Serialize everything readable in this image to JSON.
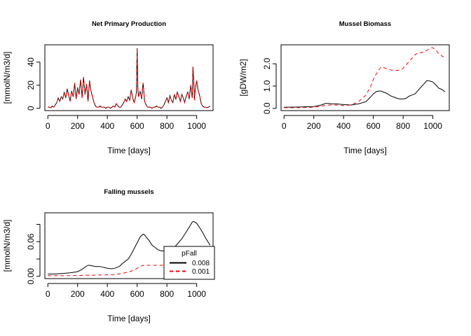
{
  "chart_data": [
    {
      "id": "npp",
      "type": "line",
      "title": "Net Primary Production",
      "xlabel": "Time [days]",
      "ylabel": "[mmolN/m3/d]",
      "xlim": [
        -20,
        1110
      ],
      "ylim": [
        -2,
        55
      ],
      "xticks": [
        0,
        200,
        400,
        600,
        800,
        1000
      ],
      "yticks": [
        0,
        20,
        40
      ],
      "ytick_labels": [
        "0",
        "20",
        "40"
      ],
      "series": [
        {
          "color": "#000000",
          "dash": "solid",
          "x": [
            0,
            10,
            20,
            30,
            40,
            50,
            60,
            70,
            80,
            90,
            100,
            110,
            120,
            130,
            140,
            150,
            160,
            170,
            180,
            190,
            200,
            210,
            220,
            230,
            240,
            250,
            260,
            270,
            280,
            290,
            300,
            310,
            320,
            330,
            340,
            350,
            360,
            370,
            380,
            390,
            400,
            410,
            420,
            430,
            440,
            450,
            460,
            470,
            480,
            490,
            500,
            510,
            520,
            530,
            540,
            550,
            560,
            570,
            580,
            590,
            595,
            600,
            605,
            610,
            620,
            630,
            640,
            650,
            660,
            670,
            680,
            690,
            700,
            710,
            720,
            730,
            740,
            750,
            760,
            770,
            780,
            790,
            800,
            810,
            820,
            830,
            840,
            850,
            860,
            870,
            880,
            890,
            900,
            910,
            920,
            930,
            940,
            950,
            960,
            970,
            975,
            980,
            985,
            990,
            1000,
            1010,
            1020,
            1030,
            1040,
            1050,
            1060,
            1070,
            1080,
            1090
          ],
          "y": [
            1,
            1,
            0.5,
            2,
            1,
            3,
            5,
            9,
            6,
            10,
            8,
            14,
            9,
            17,
            11,
            6,
            15,
            10,
            22,
            8,
            18,
            12,
            25,
            9,
            27,
            12,
            21,
            6,
            24,
            15,
            10,
            5,
            2,
            1,
            1,
            2,
            1,
            1,
            1,
            0,
            1,
            1,
            0,
            1,
            2,
            1,
            4,
            2,
            1,
            1,
            3,
            5,
            8,
            6,
            10,
            7,
            16,
            9,
            5,
            10,
            14,
            52,
            16,
            10,
            15,
            8,
            22,
            6,
            3,
            1,
            1,
            1,
            0,
            1,
            1,
            2,
            1,
            1,
            0,
            1,
            3,
            6,
            9,
            5,
            11,
            7,
            5,
            12,
            8,
            14,
            10,
            6,
            12,
            9,
            5,
            11,
            14,
            8,
            20,
            9,
            36,
            25,
            7,
            16,
            24,
            15,
            11,
            4,
            2,
            1,
            1,
            0.5,
            1,
            2
          ]
        },
        {
          "color": "#ff0000",
          "dash": "5,4",
          "x": [
            0,
            10,
            20,
            30,
            40,
            50,
            60,
            70,
            80,
            90,
            100,
            110,
            120,
            130,
            140,
            150,
            160,
            170,
            180,
            190,
            200,
            210,
            220,
            230,
            240,
            250,
            260,
            270,
            280,
            290,
            300,
            310,
            320,
            330,
            340,
            350,
            360,
            370,
            380,
            390,
            400,
            410,
            420,
            430,
            440,
            450,
            460,
            470,
            480,
            490,
            500,
            510,
            520,
            530,
            540,
            550,
            560,
            570,
            580,
            590,
            595,
            600,
            605,
            610,
            620,
            630,
            640,
            650,
            660,
            670,
            680,
            690,
            700,
            710,
            720,
            730,
            740,
            750,
            760,
            770,
            780,
            790,
            800,
            810,
            820,
            830,
            840,
            850,
            860,
            870,
            880,
            890,
            900,
            910,
            920,
            930,
            940,
            950,
            960,
            970,
            975,
            980,
            985,
            990,
            1000,
            1010,
            1020,
            1030,
            1040,
            1050,
            1060,
            1070,
            1080,
            1090
          ],
          "y": [
            1,
            1,
            0.5,
            2,
            1,
            3,
            5,
            9,
            6,
            10,
            8,
            14,
            9,
            17,
            11,
            6,
            15,
            10,
            22,
            8,
            18,
            12,
            25,
            9,
            27,
            12,
            21,
            6,
            24,
            15,
            10,
            5,
            2,
            1,
            1,
            2,
            1,
            1,
            1,
            0,
            1,
            1,
            0,
            1,
            2,
            1,
            4,
            2,
            1,
            1,
            3,
            5,
            8,
            6,
            10,
            7,
            16,
            9,
            5,
            10,
            14,
            52,
            16,
            10,
            15,
            8,
            22,
            6,
            3,
            1,
            1,
            1,
            0,
            1,
            1,
            2,
            1,
            1,
            0,
            1,
            3,
            6,
            9,
            5,
            11,
            7,
            5,
            12,
            8,
            14,
            10,
            6,
            12,
            9,
            5,
            11,
            14,
            8,
            20,
            9,
            36,
            25,
            7,
            16,
            24,
            15,
            11,
            4,
            2,
            1,
            1,
            0.5,
            1,
            2
          ]
        }
      ]
    },
    {
      "id": "biomass",
      "type": "line",
      "title": "Mussel Biomass",
      "xlabel": "Time [days]",
      "ylabel": "[gDW/m2]",
      "xlim": [
        -20,
        1110
      ],
      "ylim": [
        -0.1,
        2.85
      ],
      "xticks": [
        0,
        200,
        400,
        600,
        800,
        1000
      ],
      "yticks": [
        0.0,
        1.0,
        2.0
      ],
      "ytick_labels": [
        "0.0",
        "1.0",
        "2.0"
      ],
      "series": [
        {
          "color": "#000000",
          "dash": "solid",
          "x": [
            0,
            100,
            200,
            250,
            280,
            300,
            320,
            350,
            400,
            450,
            500,
            550,
            580,
            600,
            620,
            640,
            650,
            660,
            680,
            700,
            720,
            740,
            760,
            780,
            800,
            820,
            840,
            860,
            880,
            900,
            920,
            940,
            960,
            980,
            1000,
            1020,
            1040,
            1060,
            1080
          ],
          "y": [
            0.05,
            0.06,
            0.08,
            0.15,
            0.22,
            0.22,
            0.2,
            0.2,
            0.17,
            0.15,
            0.2,
            0.3,
            0.5,
            0.65,
            0.75,
            0.78,
            0.78,
            0.75,
            0.7,
            0.63,
            0.55,
            0.5,
            0.45,
            0.42,
            0.42,
            0.45,
            0.55,
            0.6,
            0.65,
            0.8,
            0.95,
            1.1,
            1.25,
            1.22,
            1.18,
            1.05,
            0.9,
            0.85,
            0.75
          ]
        },
        {
          "color": "#ff0000",
          "dash": "5,4",
          "x": [
            0,
            100,
            200,
            250,
            300,
            350,
            400,
            450,
            500,
            550,
            580,
            600,
            620,
            640,
            650,
            660,
            680,
            700,
            720,
            740,
            760,
            780,
            800,
            820,
            840,
            860,
            880,
            900,
            920,
            940,
            960,
            980,
            1000,
            1020,
            1040,
            1060,
            1080
          ],
          "y": [
            0.03,
            0.03,
            0.05,
            0.1,
            0.15,
            0.15,
            0.12,
            0.15,
            0.3,
            0.6,
            0.95,
            1.3,
            1.55,
            1.75,
            1.85,
            1.85,
            1.8,
            1.75,
            1.72,
            1.7,
            1.7,
            1.72,
            1.8,
            1.95,
            2.1,
            2.25,
            2.4,
            2.5,
            2.5,
            2.52,
            2.6,
            2.7,
            2.72,
            2.6,
            2.45,
            2.35,
            2.28
          ]
        }
      ]
    },
    {
      "id": "falling",
      "type": "line",
      "title": "Falling mussels",
      "xlabel": "Time [days]",
      "ylabel": "[mmolN/m3/d]",
      "xlim": [
        -20,
        1110
      ],
      "ylim": [
        -0.004,
        0.11
      ],
      "xticks": [
        0,
        200,
        400,
        600,
        800,
        1000
      ],
      "yticks": [
        0.0,
        0.03,
        0.06,
        0.09
      ],
      "ytick_labels": [
        "0.00",
        "",
        "0.06",
        ""
      ],
      "legend": {
        "title": "pFall",
        "position": "bottom-right",
        "entries": [
          "0.008",
          "0.001"
        ]
      },
      "series": [
        {
          "name": "0.008",
          "color": "#000000",
          "dash": "solid",
          "x": [
            0,
            50,
            100,
            150,
            200,
            230,
            250,
            270,
            280,
            300,
            320,
            350,
            380,
            400,
            430,
            450,
            480,
            500,
            520,
            540,
            560,
            580,
            600,
            620,
            640,
            650,
            660,
            680,
            700,
            720,
            740,
            760,
            780,
            800,
            850,
            900,
            950,
            970,
            980,
            1000,
            1020,
            1040,
            1060,
            1080,
            1090
          ],
          "y": [
            0.004,
            0.004,
            0.005,
            0.006,
            0.008,
            0.012,
            0.016,
            0.019,
            0.019,
            0.018,
            0.017,
            0.017,
            0.015,
            0.014,
            0.013,
            0.014,
            0.017,
            0.022,
            0.026,
            0.03,
            0.038,
            0.048,
            0.058,
            0.068,
            0.073,
            0.072,
            0.068,
            0.062,
            0.054,
            0.05,
            0.046,
            0.044,
            0.044,
            0.044,
            0.05,
            0.065,
            0.085,
            0.094,
            0.095,
            0.092,
            0.084,
            0.076,
            0.066,
            0.058,
            0.054
          ]
        },
        {
          "name": "0.001",
          "color": "#ff0000",
          "dash": "5,4",
          "x": [
            0,
            100,
            200,
            300,
            400,
            450,
            500,
            550,
            580,
            600,
            620,
            640,
            650,
            660,
            700,
            750,
            800,
            850
          ],
          "y": [
            0.001,
            0.001,
            0.0015,
            0.002,
            0.0025,
            0.003,
            0.005,
            0.008,
            0.011,
            0.014,
            0.017,
            0.019,
            0.019,
            0.019,
            0.019,
            0.019,
            0.019,
            0.019
          ]
        }
      ]
    }
  ]
}
